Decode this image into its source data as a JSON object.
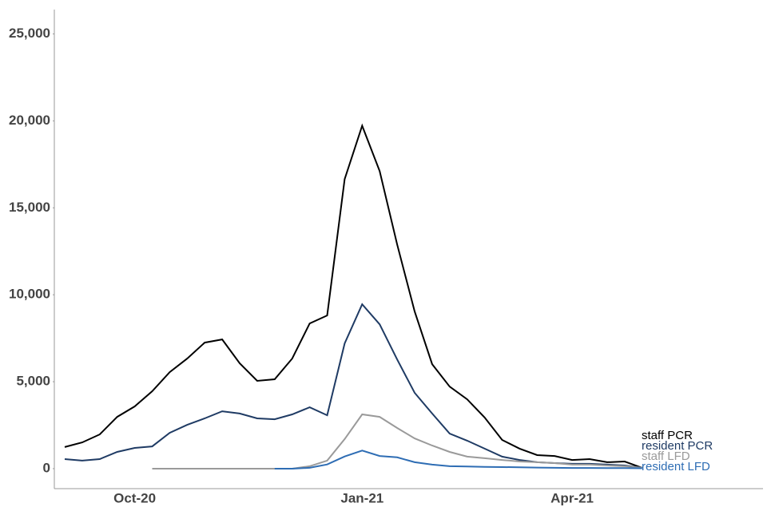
{
  "chart_data": {
    "type": "line",
    "categories": [
      null,
      null,
      null,
      null,
      "Oct-20",
      null,
      null,
      null,
      null,
      null,
      null,
      null,
      null,
      null,
      null,
      null,
      null,
      "Jan-21",
      null,
      null,
      null,
      null,
      null,
      null,
      null,
      null,
      null,
      null,
      null,
      "Apr-21",
      null,
      null,
      null,
      null
    ],
    "series": [
      {
        "name": "staff PCR",
        "color": "#000000",
        "values": [
          1240,
          1510,
          1970,
          2980,
          3580,
          4450,
          5550,
          6330,
          7250,
          7430,
          6060,
          5050,
          5140,
          6330,
          8350,
          8810,
          16650,
          19720,
          17110,
          12890,
          9040,
          6010,
          4720,
          3990,
          2940,
          1650,
          1150,
          780,
          730,
          500,
          550,
          370,
          410,
          50
        ]
      },
      {
        "name": "resident PCR",
        "color": "#1f3b64",
        "values": [
          550,
          460,
          550,
          960,
          1190,
          1280,
          2060,
          2520,
          2890,
          3300,
          3170,
          2890,
          2840,
          3120,
          3530,
          3070,
          7200,
          9450,
          8300,
          6280,
          4360,
          3170,
          2020,
          1610,
          1150,
          690,
          500,
          370,
          320,
          280,
          280,
          230,
          180,
          50
        ]
      },
      {
        "name": "staff LFD",
        "color": "#9a9a9a",
        "values": [
          null,
          null,
          null,
          null,
          null,
          0,
          0,
          0,
          0,
          0,
          0,
          0,
          0,
          0,
          140,
          460,
          1700,
          3120,
          2980,
          2340,
          1740,
          1330,
          960,
          690,
          600,
          500,
          410,
          370,
          320,
          230,
          230,
          180,
          140,
          50
        ]
      },
      {
        "name": "resident LFD",
        "color": "#2e6db4",
        "values": [
          null,
          null,
          null,
          null,
          null,
          null,
          null,
          null,
          null,
          null,
          null,
          null,
          0,
          0,
          50,
          240,
          700,
          1040,
          730,
          650,
          370,
          230,
          140,
          120,
          100,
          90,
          80,
          60,
          50,
          40,
          40,
          30,
          30,
          20
        ]
      }
    ],
    "ylim": [
      -1150,
      26400
    ],
    "yticks": [
      0,
      {
        "value": 5000,
        "label": "5,000"
      },
      {
        "value": 10000,
        "label": "10,000"
      },
      {
        "value": 15000,
        "label": "15,000"
      },
      {
        "value": 20000,
        "label": "20,000"
      },
      {
        "value": 25000,
        "label": "25,000"
      }
    ],
    "grid": false
  }
}
